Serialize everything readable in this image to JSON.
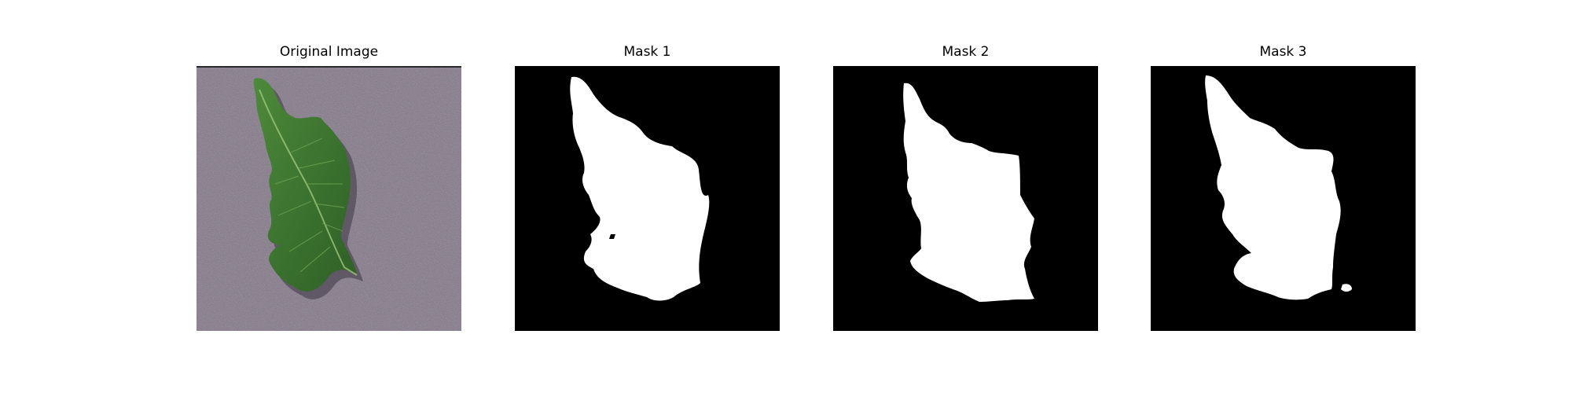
{
  "panels": [
    {
      "title": "Original Image",
      "kind": "photo",
      "subject": "leaf"
    },
    {
      "title": "Mask 1",
      "kind": "mask"
    },
    {
      "title": "Mask 2",
      "kind": "mask"
    },
    {
      "title": "Mask 3",
      "kind": "mask"
    }
  ],
  "colors": {
    "background": "#ffffff",
    "mask_background": "#000000",
    "mask_foreground": "#ffffff",
    "photo_background": "#8b8190",
    "leaf": "#3f7a2c"
  }
}
